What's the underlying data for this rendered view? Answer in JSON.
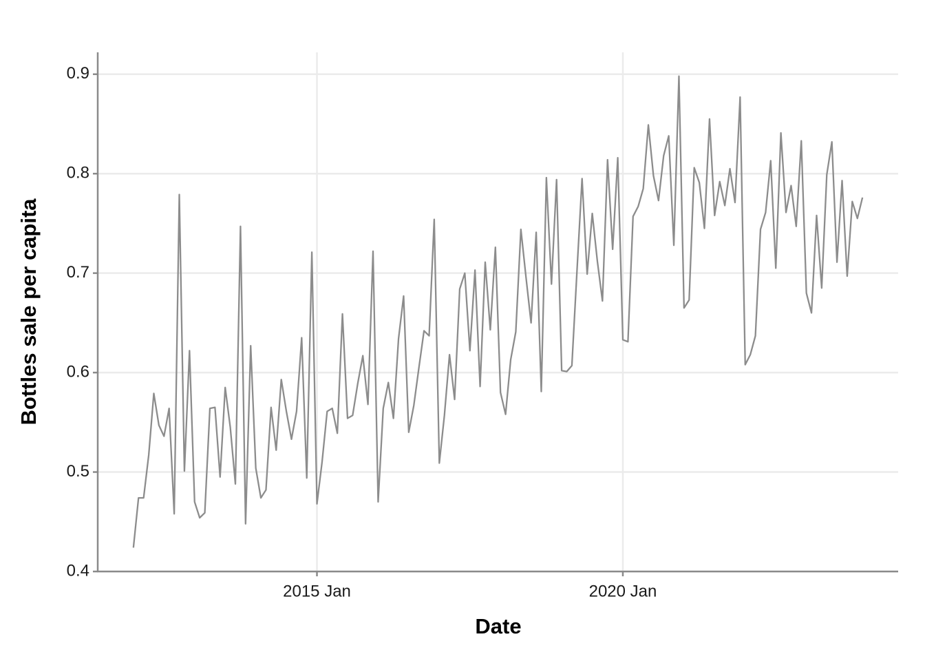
{
  "chart_data": {
    "type": "line",
    "x_label": "Date",
    "y_label": "Bottles sale per capita",
    "x": [
      "2012 Jan",
      "2012 Feb",
      "2012 Mar",
      "2012 Apr",
      "2012 May",
      "2012 Jun",
      "2012 Jul",
      "2012 Aug",
      "2012 Sep",
      "2012 Oct",
      "2012 Nov",
      "2012 Dec",
      "2013 Jan",
      "2013 Feb",
      "2013 Mar",
      "2013 Apr",
      "2013 May",
      "2013 Jun",
      "2013 Jul",
      "2013 Aug",
      "2013 Sep",
      "2013 Oct",
      "2013 Nov",
      "2013 Dec",
      "2014 Jan",
      "2014 Feb",
      "2014 Mar",
      "2014 Apr",
      "2014 May",
      "2014 Jun",
      "2014 Jul",
      "2014 Aug",
      "2014 Sep",
      "2014 Oct",
      "2014 Nov",
      "2014 Dec",
      "2015 Jan",
      "2015 Feb",
      "2015 Mar",
      "2015 Apr",
      "2015 May",
      "2015 Jun",
      "2015 Jul",
      "2015 Aug",
      "2015 Sep",
      "2015 Oct",
      "2015 Nov",
      "2015 Dec",
      "2016 Jan",
      "2016 Feb",
      "2016 Mar",
      "2016 Apr",
      "2016 May",
      "2016 Jun",
      "2016 Jul",
      "2016 Aug",
      "2016 Sep",
      "2016 Oct",
      "2016 Nov",
      "2016 Dec",
      "2017 Jan",
      "2017 Feb",
      "2017 Mar",
      "2017 Apr",
      "2017 May",
      "2017 Jun",
      "2017 Jul",
      "2017 Aug",
      "2017 Sep",
      "2017 Oct",
      "2017 Nov",
      "2017 Dec",
      "2018 Jan",
      "2018 Feb",
      "2018 Mar",
      "2018 Apr",
      "2018 May",
      "2018 Jun",
      "2018 Jul",
      "2018 Aug",
      "2018 Sep",
      "2018 Oct",
      "2018 Nov",
      "2018 Dec",
      "2019 Jan",
      "2019 Feb",
      "2019 Mar",
      "2019 Apr",
      "2019 May",
      "2019 Jun",
      "2019 Jul",
      "2019 Aug",
      "2019 Sep",
      "2019 Oct",
      "2019 Nov",
      "2019 Dec",
      "2020 Jan",
      "2020 Feb",
      "2020 Mar",
      "2020 Apr",
      "2020 May",
      "2020 Jun",
      "2020 Jul",
      "2020 Aug",
      "2020 Sep",
      "2020 Oct",
      "2020 Nov",
      "2020 Dec",
      "2021 Jan",
      "2021 Feb",
      "2021 Mar",
      "2021 Apr",
      "2021 May",
      "2021 Jun",
      "2021 Jul",
      "2021 Aug",
      "2021 Sep",
      "2021 Oct",
      "2021 Nov",
      "2021 Dec",
      "2022 Jan",
      "2022 Feb",
      "2022 Mar",
      "2022 Apr",
      "2022 May",
      "2022 Jun",
      "2022 Jul",
      "2022 Aug",
      "2022 Sep",
      "2022 Oct",
      "2022 Nov",
      "2022 Dec",
      "2023 Jan",
      "2023 Feb",
      "2023 Mar",
      "2023 Apr",
      "2023 May",
      "2023 Jun",
      "2023 Jul",
      "2023 Aug",
      "2023 Sep",
      "2023 Oct",
      "2023 Nov",
      "2023 Dec"
    ],
    "series": [
      {
        "color": "#8c8c8c",
        "values": [
          0.424,
          0.474,
          0.474,
          0.517,
          0.579,
          0.547,
          0.536,
          0.564,
          0.458,
          0.779,
          0.501,
          0.622,
          0.47,
          0.454,
          0.459,
          0.564,
          0.565,
          0.495,
          0.585,
          0.545,
          0.488,
          0.747,
          0.448,
          0.627,
          0.504,
          0.474,
          0.482,
          0.565,
          0.522,
          0.593,
          0.561,
          0.533,
          0.561,
          0.635,
          0.494,
          0.721,
          0.468,
          0.51,
          0.561,
          0.564,
          0.539,
          0.659,
          0.554,
          0.557,
          0.589,
          0.617,
          0.568,
          0.722,
          0.47,
          0.564,
          0.59,
          0.554,
          0.634,
          0.677,
          0.54,
          0.567,
          0.605,
          0.642,
          0.637,
          0.754,
          0.509,
          0.557,
          0.618,
          0.573,
          0.684,
          0.7,
          0.622,
          0.703,
          0.586,
          0.711,
          0.643,
          0.726,
          0.58,
          0.558,
          0.613,
          0.641,
          0.744,
          0.696,
          0.65,
          0.741,
          0.581,
          0.796,
          0.689,
          0.794,
          0.602,
          0.601,
          0.607,
          0.702,
          0.795,
          0.699,
          0.76,
          0.712,
          0.672,
          0.814,
          0.724,
          0.816,
          0.633,
          0.631,
          0.757,
          0.767,
          0.785,
          0.849,
          0.798,
          0.773,
          0.818,
          0.838,
          0.728,
          0.898,
          0.665,
          0.673,
          0.806,
          0.791,
          0.745,
          0.855,
          0.758,
          0.792,
          0.768,
          0.805,
          0.771,
          0.877,
          0.608,
          0.618,
          0.637,
          0.744,
          0.761,
          0.813,
          0.705,
          0.841,
          0.761,
          0.788,
          0.747,
          0.833,
          0.68,
          0.66,
          0.758,
          0.685,
          0.799,
          0.832,
          0.711,
          0.793,
          0.697,
          0.772,
          0.755,
          0.776
        ]
      }
    ],
    "xlim": [
      "2011 Jun",
      "2024 Jul"
    ],
    "xticks": [
      "2015 Jan",
      "2020 Jan"
    ],
    "ylim": [
      0.4,
      0.922
    ],
    "yticks": [
      0.4,
      0.5,
      0.6,
      0.7,
      0.8,
      0.9
    ],
    "grid": true
  }
}
